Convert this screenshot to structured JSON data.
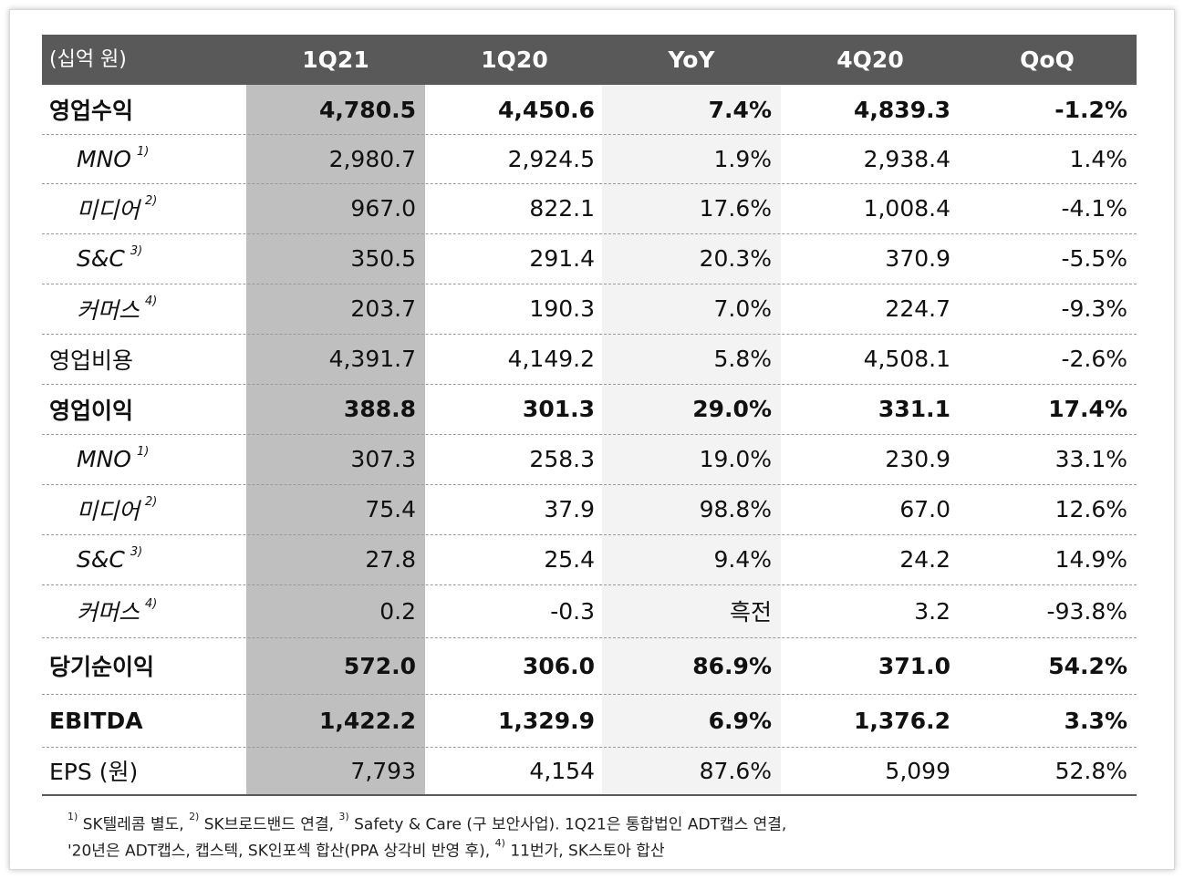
{
  "header": {
    "unit": "(십억 원)",
    "columns": [
      "1Q21",
      "1Q20",
      "YoY",
      "4Q20",
      "QoQ"
    ]
  },
  "rows": [
    {
      "label": "영업수익",
      "sup": "",
      "values": [
        "4,780.5",
        "4,450.6",
        "7.4%",
        "4,839.3",
        "-1.2%"
      ]
    },
    {
      "label": "MNO",
      "sup": "1)",
      "values": [
        "2,980.7",
        "2,924.5",
        "1.9%",
        "2,938.4",
        "1.4%"
      ]
    },
    {
      "label": "미디어",
      "sup": "2)",
      "values": [
        "967.0",
        "822.1",
        "17.6%",
        "1,008.4",
        "-4.1%"
      ]
    },
    {
      "label": "S&C",
      "sup": "3)",
      "values": [
        "350.5",
        "291.4",
        "20.3%",
        "370.9",
        "-5.5%"
      ]
    },
    {
      "label": "커머스",
      "sup": "4)",
      "values": [
        "203.7",
        "190.3",
        "7.0%",
        "224.7",
        "-9.3%"
      ]
    },
    {
      "label": "영업비용",
      "sup": "",
      "values": [
        "4,391.7",
        "4,149.2",
        "5.8%",
        "4,508.1",
        "-2.6%"
      ]
    },
    {
      "label": "영업이익",
      "sup": "",
      "values": [
        "388.8",
        "301.3",
        "29.0%",
        "331.1",
        "17.4%"
      ]
    },
    {
      "label": "MNO",
      "sup": "1)",
      "values": [
        "307.3",
        "258.3",
        "19.0%",
        "230.9",
        "33.1%"
      ]
    },
    {
      "label": "미디어",
      "sup": "2)",
      "values": [
        "75.4",
        "37.9",
        "98.8%",
        "67.0",
        "12.6%"
      ]
    },
    {
      "label": "S&C",
      "sup": "3)",
      "values": [
        "27.8",
        "25.4",
        "9.4%",
        "24.2",
        "14.9%"
      ]
    },
    {
      "label": "커머스",
      "sup": "4)",
      "values": [
        "0.2",
        "-0.3",
        "흑전",
        "3.2",
        "-93.8%"
      ]
    },
    {
      "label": "당기순이익",
      "sup": "",
      "values": [
        "572.0",
        "306.0",
        "86.9%",
        "371.0",
        "54.2%"
      ]
    },
    {
      "label": "EBITDA",
      "sup": "",
      "values": [
        "1,422.2",
        "1,329.9",
        "6.9%",
        "1,376.2",
        "3.3%"
      ]
    },
    {
      "label": "EPS (원)",
      "sup": "",
      "values": [
        "7,793",
        "4,154",
        "87.6%",
        "5,099",
        "52.8%"
      ]
    }
  ],
  "footnote": {
    "n1": "1)",
    "t1": " SK텔레콤 별도, ",
    "n2": "2)",
    "t2": " SK브로드밴드 연결, ",
    "n3": "3)",
    "t3": " Safety & Care (구 보안사업). 1Q21은 통합법인 ADT캡스 연결,",
    "line2a": "'20년은 ADT캡스, 캡스텍, SK인포섹 합산(PPA 상각비 반영 후), ",
    "n4": "4)",
    "t4": " 11번가, SK스토아 합산"
  }
}
